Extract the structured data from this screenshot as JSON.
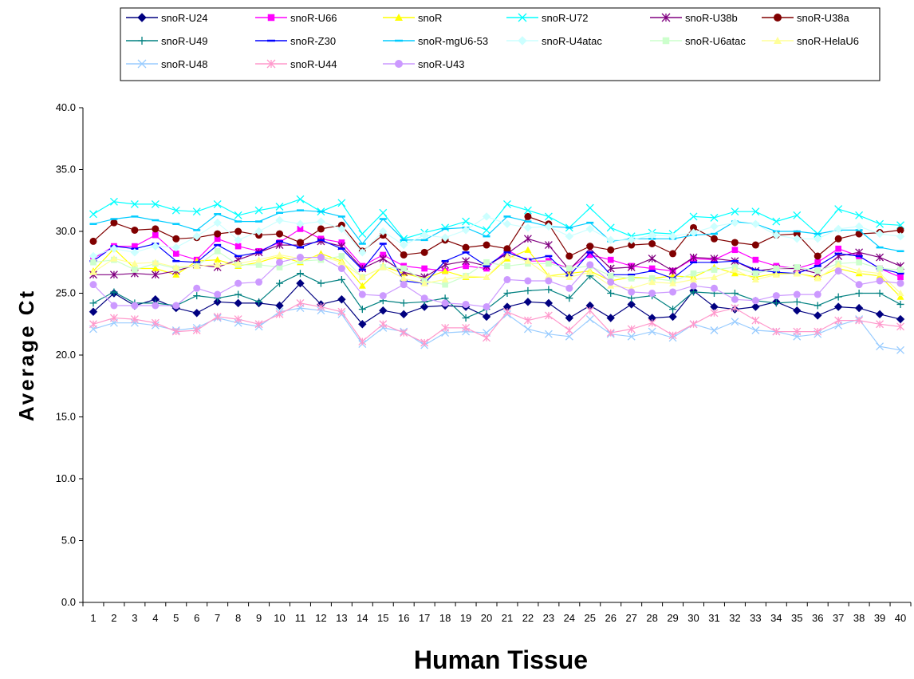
{
  "chart_data": {
    "type": "line",
    "xlabel": "Human Tissue",
    "ylabel": "Average Ct",
    "ylim": [
      0,
      40
    ],
    "yticks": [
      "0.0",
      "5.0",
      "10.0",
      "15.0",
      "20.0",
      "25.0",
      "30.0",
      "35.0",
      "40.0"
    ],
    "categories": [
      "1",
      "2",
      "3",
      "4",
      "5",
      "6",
      "7",
      "8",
      "9",
      "10",
      "11",
      "12",
      "13",
      "14",
      "15",
      "16",
      "17",
      "18",
      "19",
      "20",
      "21",
      "22",
      "23",
      "24",
      "25",
      "26",
      "27",
      "28",
      "29",
      "30",
      "31",
      "32",
      "33",
      "34",
      "35",
      "36",
      "37",
      "38",
      "39",
      "40"
    ],
    "grid": false,
    "legend_position": "top",
    "series": [
      {
        "name": "snoR-U24",
        "color": "#000080",
        "marker": "diamond",
        "values": [
          23.5,
          25.0,
          24.0,
          24.5,
          23.8,
          23.4,
          24.3,
          24.2,
          24.2,
          24.0,
          25.8,
          24.1,
          24.5,
          22.5,
          23.6,
          23.3,
          23.9,
          24.0,
          23.9,
          23.1,
          23.9,
          24.3,
          24.2,
          23.0,
          24.0,
          23.0,
          24.1,
          23.0,
          23.1,
          25.2,
          23.9,
          23.7,
          23.9,
          24.3,
          23.6,
          23.2,
          23.9,
          23.8,
          23.3,
          22.9
        ]
      },
      {
        "name": "snoR-U66",
        "color": "#FF00FF",
        "marker": "square",
        "values": [
          27.8,
          28.8,
          28.8,
          29.7,
          28.2,
          27.7,
          29.4,
          28.8,
          28.4,
          29.1,
          30.2,
          29.4,
          29.1,
          27.2,
          28.1,
          27.2,
          27.0,
          26.8,
          27.2,
          27.0,
          28.5,
          27.6,
          27.6,
          27.0,
          28.1,
          27.7,
          27.2,
          27.0,
          26.8,
          27.8,
          27.7,
          28.5,
          27.7,
          27.2,
          27.0,
          27.5,
          28.6,
          28.0,
          27.0,
          26.3
        ]
      },
      {
        "name": "snoR",
        "color": "#FFFF00",
        "marker": "triangle",
        "values": [
          26.8,
          28.6,
          27.0,
          27.0,
          26.5,
          27.6,
          27.7,
          27.2,
          27.5,
          28.0,
          27.5,
          28.2,
          27.6,
          25.6,
          27.2,
          26.6,
          26.2,
          26.8,
          26.3,
          26.3,
          27.8,
          28.5,
          26.4,
          26.6,
          26.8,
          26.0,
          26.3,
          26.2,
          26.4,
          26.3,
          27.1,
          26.6,
          26.3,
          26.6,
          26.6,
          26.3,
          27.0,
          26.6,
          26.4,
          24.7
        ]
      },
      {
        "name": "snoR-U72",
        "color": "#00FFFF",
        "marker": "x",
        "values": [
          31.4,
          32.4,
          32.2,
          32.2,
          31.7,
          31.6,
          32.2,
          31.3,
          31.7,
          32.0,
          32.6,
          31.6,
          32.3,
          29.8,
          31.5,
          29.4,
          29.9,
          30.3,
          30.8,
          30.1,
          32.2,
          31.7,
          31.2,
          30.3,
          31.9,
          30.3,
          29.6,
          29.9,
          29.8,
          31.2,
          31.1,
          31.6,
          31.6,
          30.8,
          31.3,
          29.8,
          31.8,
          31.3,
          30.6,
          30.5
        ]
      },
      {
        "name": "snoR-U38b",
        "color": "#800080",
        "marker": "star",
        "values": [
          26.5,
          26.5,
          26.6,
          26.5,
          26.8,
          27.3,
          27.1,
          27.7,
          28.3,
          28.9,
          28.9,
          29.2,
          28.8,
          27.0,
          27.8,
          26.7,
          26.3,
          27.3,
          27.6,
          27.2,
          28.2,
          29.4,
          28.9,
          26.9,
          28.6,
          27.0,
          27.1,
          27.8,
          26.8,
          27.9,
          27.8,
          27.6,
          26.8,
          27.0,
          27.0,
          26.6,
          28.0,
          28.3,
          27.9,
          27.2
        ]
      },
      {
        "name": "snoR-U38a",
        "color": "#800000",
        "marker": "circle",
        "values": [
          29.2,
          30.7,
          30.1,
          30.2,
          29.4,
          29.5,
          29.8,
          30.0,
          29.7,
          29.8,
          29.1,
          30.2,
          30.5,
          28.4,
          29.7,
          28.1,
          28.3,
          29.3,
          28.7,
          28.9,
          28.6,
          31.2,
          30.6,
          28.0,
          28.8,
          28.5,
          28.9,
          29.0,
          28.2,
          30.3,
          29.4,
          29.1,
          28.9,
          29.7,
          29.8,
          28.0,
          29.4,
          29.8,
          29.9,
          30.1
        ]
      },
      {
        "name": "snoR-U49",
        "color": "#008080",
        "marker": "plus",
        "values": [
          24.2,
          25.1,
          24.2,
          24.2,
          24.0,
          24.8,
          24.6,
          24.9,
          24.3,
          25.8,
          26.6,
          25.8,
          26.1,
          23.7,
          24.4,
          24.2,
          24.3,
          24.6,
          23.0,
          23.7,
          25.0,
          25.2,
          25.3,
          24.6,
          26.4,
          25.0,
          24.6,
          24.8,
          23.7,
          25.1,
          25.0,
          25.0,
          24.4,
          24.2,
          24.3,
          24.0,
          24.7,
          25.0,
          25.0,
          24.1
        ]
      },
      {
        "name": "snoR-Z30",
        "color": "#0000FF",
        "marker": "dash",
        "values": [
          27.6,
          28.8,
          28.6,
          29.0,
          27.6,
          27.5,
          28.9,
          28.0,
          28.3,
          29.2,
          28.7,
          29.3,
          28.6,
          26.9,
          29.0,
          26.0,
          25.8,
          27.6,
          28.3,
          27.2,
          28.3,
          27.7,
          28.0,
          26.4,
          28.3,
          26.5,
          26.5,
          26.8,
          26.2,
          27.5,
          27.5,
          27.6,
          26.9,
          26.7,
          26.6,
          27.2,
          28.2,
          28.0,
          27.0,
          26.6
        ]
      },
      {
        "name": "snoR-mgU6-53",
        "color": "#00CCFF",
        "marker": "dash",
        "values": [
          30.6,
          31.0,
          31.2,
          30.9,
          30.6,
          30.1,
          31.4,
          30.8,
          30.8,
          31.5,
          31.7,
          31.6,
          31.2,
          29.0,
          31.0,
          29.3,
          29.3,
          30.2,
          30.3,
          29.6,
          31.2,
          30.8,
          30.4,
          30.3,
          30.7,
          29.2,
          29.4,
          29.4,
          29.4,
          29.7,
          29.8,
          30.8,
          30.6,
          30.0,
          30.0,
          29.8,
          30.1,
          30.1,
          28.7,
          28.4
        ]
      },
      {
        "name": "snoR-U4atac",
        "color": "#CCFFFF",
        "marker": "diamond",
        "values": [
          28.0,
          28.6,
          28.3,
          28.8,
          28.7,
          29.6,
          30.7,
          29.3,
          30.0,
          30.9,
          30.6,
          30.8,
          30.2,
          28.3,
          30.0,
          28.9,
          29.7,
          29.5,
          30.1,
          31.2,
          30.6,
          30.3,
          30.4,
          29.6,
          30.2,
          29.3,
          29.3,
          29.7,
          29.6,
          29.9,
          30.4,
          30.7,
          30.6,
          29.7,
          29.4,
          29.4,
          30.2,
          30.4,
          29.8,
          29.6
        ]
      },
      {
        "name": "snoR-U6atac",
        "color": "#CCFFCC",
        "marker": "square",
        "values": [
          27.5,
          27.7,
          26.9,
          27.4,
          27.0,
          27.2,
          28.4,
          27.3,
          27.3,
          27.1,
          27.6,
          27.7,
          28.0,
          26.3,
          27.1,
          27.0,
          26.0,
          25.7,
          26.4,
          27.5,
          27.2,
          27.4,
          27.4,
          27.0,
          27.2,
          26.4,
          26.2,
          26.2,
          26.0,
          26.6,
          26.9,
          27.1,
          26.6,
          27.0,
          27.1,
          26.8,
          27.4,
          27.5,
          27.0,
          26.9
        ]
      },
      {
        "name": "snoR-HelaU6",
        "color": "#FFFF99",
        "marker": "triangle",
        "values": [
          26.7,
          27.8,
          27.4,
          27.5,
          27.1,
          27.2,
          27.3,
          27.4,
          27.7,
          28.1,
          27.8,
          28.0,
          27.5,
          26.3,
          27.1,
          26.2,
          25.8,
          26.1,
          26.4,
          26.3,
          28.0,
          27.6,
          26.4,
          26.3,
          26.7,
          25.6,
          25.4,
          25.9,
          25.8,
          26.1,
          26.3,
          26.9,
          26.1,
          26.5,
          26.6,
          26.2,
          27.3,
          26.8,
          26.6,
          25.0
        ]
      },
      {
        "name": "snoR-U48",
        "color": "#99CCFF",
        "marker": "x",
        "values": [
          22.1,
          22.6,
          22.6,
          22.4,
          22.0,
          22.2,
          23.0,
          22.6,
          22.3,
          23.5,
          23.8,
          23.6,
          23.3,
          20.9,
          22.2,
          21.9,
          20.8,
          21.8,
          21.9,
          21.8,
          23.3,
          22.1,
          21.7,
          21.5,
          22.9,
          21.7,
          21.5,
          21.9,
          21.4,
          22.5,
          22.0,
          22.7,
          22.0,
          21.9,
          21.5,
          21.7,
          22.4,
          22.9,
          20.7,
          20.4
        ]
      },
      {
        "name": "snoR-U44",
        "color": "#FF99CC",
        "marker": "star",
        "values": [
          22.5,
          23.0,
          22.9,
          22.6,
          21.9,
          22.0,
          23.1,
          22.9,
          22.5,
          23.3,
          24.2,
          23.9,
          23.5,
          21.1,
          22.5,
          21.8,
          21.0,
          22.2,
          22.2,
          21.4,
          23.5,
          22.8,
          23.2,
          22.0,
          23.6,
          21.8,
          22.1,
          22.6,
          21.6,
          22.5,
          23.4,
          23.8,
          22.8,
          21.9,
          21.9,
          21.9,
          22.8,
          22.8,
          22.5,
          22.3
        ]
      },
      {
        "name": "snoR-U43",
        "color": "#CC99FF",
        "marker": "circle",
        "values": [
          25.7,
          24.0,
          24.0,
          24.0,
          24.0,
          25.4,
          24.9,
          25.8,
          25.9,
          27.5,
          27.9,
          27.9,
          27.0,
          24.9,
          24.8,
          25.7,
          24.6,
          24.2,
          24.1,
          23.9,
          26.1,
          26.0,
          26.0,
          25.4,
          27.3,
          25.9,
          25.1,
          25.0,
          25.1,
          25.6,
          25.4,
          24.5,
          24.4,
          24.8,
          24.9,
          24.9,
          26.8,
          25.7,
          26.0,
          25.8
        ]
      }
    ]
  }
}
